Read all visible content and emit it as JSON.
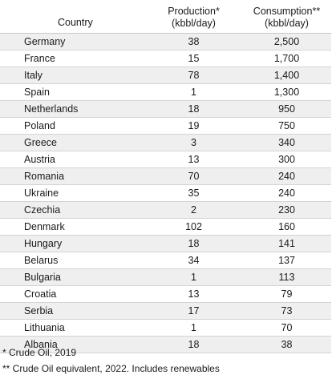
{
  "table": {
    "headers": {
      "country": "Country",
      "production_line1": "Production*",
      "production_line2": "(kbbl/day)",
      "consumption_line1": "Consumption**",
      "consumption_line2": "(kbbl/day)"
    },
    "rows": [
      {
        "country": "Germany",
        "production": "38",
        "consumption": "2,500"
      },
      {
        "country": "France",
        "production": "15",
        "consumption": "1,700"
      },
      {
        "country": "Italy",
        "production": "78",
        "consumption": "1,400"
      },
      {
        "country": "Spain",
        "production": "1",
        "consumption": "1,300"
      },
      {
        "country": "Netherlands",
        "production": "18",
        "consumption": "950"
      },
      {
        "country": "Poland",
        "production": "19",
        "consumption": "750"
      },
      {
        "country": "Greece",
        "production": "3",
        "consumption": "340"
      },
      {
        "country": "Austria",
        "production": "13",
        "consumption": "300"
      },
      {
        "country": "Romania",
        "production": "70",
        "consumption": "240"
      },
      {
        "country": "Ukraine",
        "production": "35",
        "consumption": "240"
      },
      {
        "country": "Czechia",
        "production": "2",
        "consumption": "230"
      },
      {
        "country": "Denmark",
        "production": "102",
        "consumption": "160"
      },
      {
        "country": "Hungary",
        "production": "18",
        "consumption": "141"
      },
      {
        "country": "Belarus",
        "production": "34",
        "consumption": "137"
      },
      {
        "country": "Bulgaria",
        "production": "1",
        "consumption": "113"
      },
      {
        "country": "Croatia",
        "production": "13",
        "consumption": "79"
      },
      {
        "country": "Serbia",
        "production": "17",
        "consumption": "73"
      },
      {
        "country": "Lithuania",
        "production": "1",
        "consumption": "70"
      },
      {
        "country": "Albania",
        "production": "18",
        "consumption": "38"
      }
    ]
  },
  "footnotes": {
    "production": "* Crude Oil, 2019",
    "consumption": "** Crude Oil equivalent, 2022. Includes renewables"
  },
  "colors": {
    "zebra_row": "#efefef",
    "row_border": "#d4d4d4"
  }
}
